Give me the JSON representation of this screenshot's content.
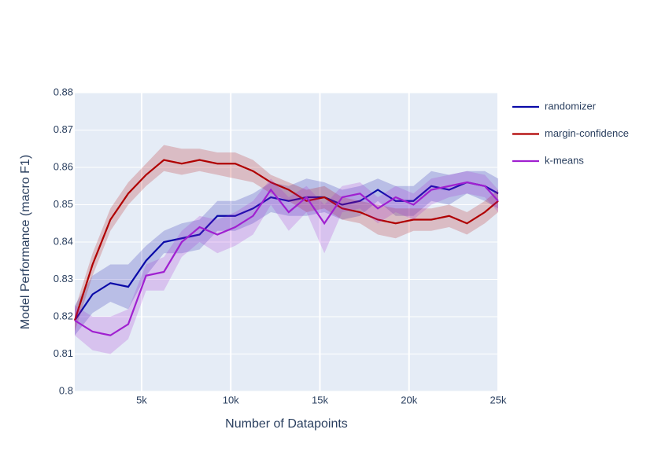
{
  "chart_data": {
    "type": "line",
    "x_label": "Number of Datapoints",
    "y_label": "Model Performance (macro F1)",
    "x": [
      1250,
      2250,
      3250,
      4250,
      5250,
      6250,
      7250,
      8250,
      9250,
      10250,
      11250,
      12250,
      13250,
      14250,
      15250,
      16250,
      17250,
      18250,
      19250,
      20250,
      21250,
      22250,
      23250,
      24250,
      25000
    ],
    "xlim": [
      1250,
      25000
    ],
    "xticks": [
      {
        "value": 5000,
        "label": "5k"
      },
      {
        "value": 10000,
        "label": "10k"
      },
      {
        "value": 15000,
        "label": "15k"
      },
      {
        "value": 20000,
        "label": "20k"
      },
      {
        "value": 25000,
        "label": "25k"
      }
    ],
    "ylim": [
      0.8,
      0.88
    ],
    "yticks": [
      0.8,
      0.81,
      0.82,
      0.83,
      0.84,
      0.85,
      0.86,
      0.87,
      0.88
    ],
    "grid": true,
    "legend": "right",
    "series": [
      {
        "name": "randomizer",
        "color": "#0a0aa8",
        "values": [
          0.819,
          0.826,
          0.829,
          0.828,
          0.835,
          0.84,
          0.841,
          0.842,
          0.847,
          0.847,
          0.849,
          0.852,
          0.851,
          0.852,
          0.852,
          0.85,
          0.851,
          0.854,
          0.851,
          0.851,
          0.855,
          0.854,
          0.856,
          0.855,
          0.853
        ],
        "upper": [
          0.823,
          0.831,
          0.834,
          0.834,
          0.839,
          0.843,
          0.845,
          0.846,
          0.851,
          0.851,
          0.853,
          0.856,
          0.855,
          0.857,
          0.856,
          0.854,
          0.855,
          0.857,
          0.855,
          0.855,
          0.859,
          0.858,
          0.859,
          0.859,
          0.857
        ],
        "lower": [
          0.815,
          0.821,
          0.824,
          0.822,
          0.831,
          0.837,
          0.837,
          0.838,
          0.843,
          0.843,
          0.845,
          0.848,
          0.847,
          0.847,
          0.848,
          0.846,
          0.847,
          0.851,
          0.847,
          0.847,
          0.851,
          0.85,
          0.853,
          0.851,
          0.849
        ]
      },
      {
        "name": "margin-confidence",
        "color": "#b00000",
        "values": [
          0.819,
          0.834,
          0.846,
          0.853,
          0.858,
          0.862,
          0.861,
          0.862,
          0.861,
          0.861,
          0.859,
          0.856,
          0.854,
          0.851,
          0.852,
          0.849,
          0.848,
          0.846,
          0.845,
          0.846,
          0.846,
          0.847,
          0.845,
          0.848,
          0.851
        ],
        "upper": [
          0.822,
          0.837,
          0.849,
          0.856,
          0.861,
          0.866,
          0.865,
          0.865,
          0.864,
          0.864,
          0.862,
          0.858,
          0.856,
          0.854,
          0.855,
          0.852,
          0.851,
          0.85,
          0.849,
          0.849,
          0.849,
          0.85,
          0.848,
          0.851,
          0.854
        ],
        "lower": [
          0.816,
          0.831,
          0.843,
          0.85,
          0.855,
          0.859,
          0.858,
          0.859,
          0.858,
          0.857,
          0.856,
          0.853,
          0.851,
          0.848,
          0.849,
          0.846,
          0.845,
          0.842,
          0.841,
          0.843,
          0.843,
          0.844,
          0.842,
          0.845,
          0.848
        ]
      },
      {
        "name": "k-means",
        "color": "#a020d0",
        "values": [
          0.819,
          0.816,
          0.815,
          0.818,
          0.831,
          0.832,
          0.84,
          0.844,
          0.842,
          0.844,
          0.847,
          0.854,
          0.848,
          0.852,
          0.845,
          0.852,
          0.853,
          0.849,
          0.852,
          0.85,
          0.854,
          0.855,
          0.856,
          0.855,
          0.851
        ],
        "upper": [
          0.823,
          0.82,
          0.82,
          0.822,
          0.834,
          0.836,
          0.843,
          0.847,
          0.846,
          0.848,
          0.851,
          0.857,
          0.852,
          0.855,
          0.85,
          0.855,
          0.856,
          0.852,
          0.855,
          0.853,
          0.857,
          0.858,
          0.859,
          0.858,
          0.854
        ],
        "lower": [
          0.815,
          0.811,
          0.81,
          0.814,
          0.827,
          0.827,
          0.836,
          0.84,
          0.837,
          0.839,
          0.842,
          0.85,
          0.843,
          0.848,
          0.837,
          0.848,
          0.849,
          0.845,
          0.848,
          0.846,
          0.85,
          0.852,
          0.853,
          0.852,
          0.848
        ]
      }
    ]
  }
}
